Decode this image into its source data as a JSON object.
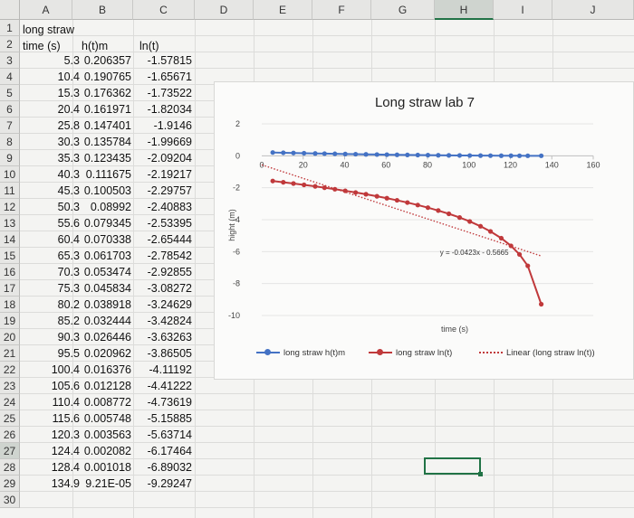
{
  "columns": [
    "A",
    "B",
    "C",
    "D",
    "E",
    "F",
    "G",
    "H",
    "I",
    "J"
  ],
  "selected_column": "H",
  "rows": [
    "1",
    "2",
    "3",
    "4",
    "5",
    "6",
    "7",
    "8",
    "9",
    "10",
    "11",
    "12",
    "13",
    "14",
    "15",
    "16",
    "17",
    "18",
    "19",
    "20",
    "21",
    "22",
    "23",
    "24",
    "25",
    "26",
    "27",
    "28",
    "29",
    "30"
  ],
  "selected_row": "27",
  "title_cell": "long straw",
  "headers": {
    "a": "time (s)",
    "b": "h(t)m",
    "c": "ln(t)"
  },
  "table": [
    [
      "5.3",
      "0.206357",
      "-1.57815"
    ],
    [
      "10.4",
      "0.190765",
      "-1.65671"
    ],
    [
      "15.3",
      "0.176362",
      "-1.73522"
    ],
    [
      "20.4",
      "0.161971",
      "-1.82034"
    ],
    [
      "25.8",
      "0.147401",
      "-1.9146"
    ],
    [
      "30.3",
      "0.135784",
      "-1.99669"
    ],
    [
      "35.3",
      "0.123435",
      "-2.09204"
    ],
    [
      "40.3",
      "0.111675",
      "-2.19217"
    ],
    [
      "45.3",
      "0.100503",
      "-2.29757"
    ],
    [
      "50.3",
      "0.08992",
      "-2.40883"
    ],
    [
      "55.6",
      "0.079345",
      "-2.53395"
    ],
    [
      "60.4",
      "0.070338",
      "-2.65444"
    ],
    [
      "65.3",
      "0.061703",
      "-2.78542"
    ],
    [
      "70.3",
      "0.053474",
      "-2.92855"
    ],
    [
      "75.3",
      "0.045834",
      "-3.08272"
    ],
    [
      "80.2",
      "0.038918",
      "-3.24629"
    ],
    [
      "85.2",
      "0.032444",
      "-3.42824"
    ],
    [
      "90.3",
      "0.026446",
      "-3.63263"
    ],
    [
      "95.5",
      "0.020962",
      "-3.86505"
    ],
    [
      "100.4",
      "0.016376",
      "-4.11192"
    ],
    [
      "105.6",
      "0.012128",
      "-4.41222"
    ],
    [
      "110.4",
      "0.008772",
      "-4.73619"
    ],
    [
      "115.6",
      "0.005748",
      "-5.15885"
    ],
    [
      "120.3",
      "0.003563",
      "-5.63714"
    ],
    [
      "124.4",
      "0.002082",
      "-6.17464"
    ],
    [
      "128.4",
      "0.001018",
      "-6.89032"
    ],
    [
      "134.9",
      "9.21E-05",
      "-9.29247"
    ]
  ],
  "chart_data": {
    "type": "line",
    "title": "Long straw lab 7",
    "xlabel": "time (s)",
    "ylabel": "hight (m)",
    "xlim": [
      0,
      160
    ],
    "ylim": [
      -10,
      2
    ],
    "xticks": [
      "20",
      "40",
      "60",
      "80",
      "100",
      "120",
      "140",
      "160"
    ],
    "xtick_values": [
      20,
      40,
      60,
      80,
      100,
      120,
      140,
      160
    ],
    "yticks": [
      "2",
      "0",
      "-2",
      "-4",
      "-6",
      "-8",
      "-10"
    ],
    "ytick_values": [
      2,
      0,
      -2,
      -4,
      -6,
      -8,
      -10
    ],
    "origin_label": "0",
    "x": [
      5.3,
      10.4,
      15.3,
      20.4,
      25.8,
      30.3,
      35.3,
      40.3,
      45.3,
      50.3,
      55.6,
      60.4,
      65.3,
      70.3,
      75.3,
      80.2,
      85.2,
      90.3,
      95.5,
      100.4,
      105.6,
      110.4,
      115.6,
      120.3,
      124.4,
      128.4,
      134.9
    ],
    "series": [
      {
        "name": "long straw h(t)m",
        "color": "#4472c4",
        "values": [
          0.206357,
          0.190765,
          0.176362,
          0.161971,
          0.147401,
          0.135784,
          0.123435,
          0.111675,
          0.100503,
          0.08992,
          0.079345,
          0.070338,
          0.061703,
          0.053474,
          0.045834,
          0.038918,
          0.032444,
          0.026446,
          0.020962,
          0.016376,
          0.012128,
          0.008772,
          0.005748,
          0.003563,
          0.002082,
          0.001018,
          9.21e-05
        ]
      },
      {
        "name": "long straw ln(t)",
        "color": "#c0393b",
        "values": [
          -1.57815,
          -1.65671,
          -1.73522,
          -1.82034,
          -1.9146,
          -1.99669,
          -2.09204,
          -2.19217,
          -2.29757,
          -2.40883,
          -2.53395,
          -2.65444,
          -2.78542,
          -2.92855,
          -3.08272,
          -3.24629,
          -3.42824,
          -3.63263,
          -3.86505,
          -4.11192,
          -4.41222,
          -4.73619,
          -5.15885,
          -5.63714,
          -6.17464,
          -6.89032,
          -9.29247
        ]
      }
    ],
    "trendline": {
      "name": "Linear (long straw ln(t))",
      "color": "#c0393b",
      "slope": -0.0423,
      "intercept": -0.5665,
      "x_range": [
        0,
        135
      ],
      "equation": "y = -0.0423x - 0.5665"
    },
    "legend_position": "bottom",
    "grid": "horizontal"
  }
}
